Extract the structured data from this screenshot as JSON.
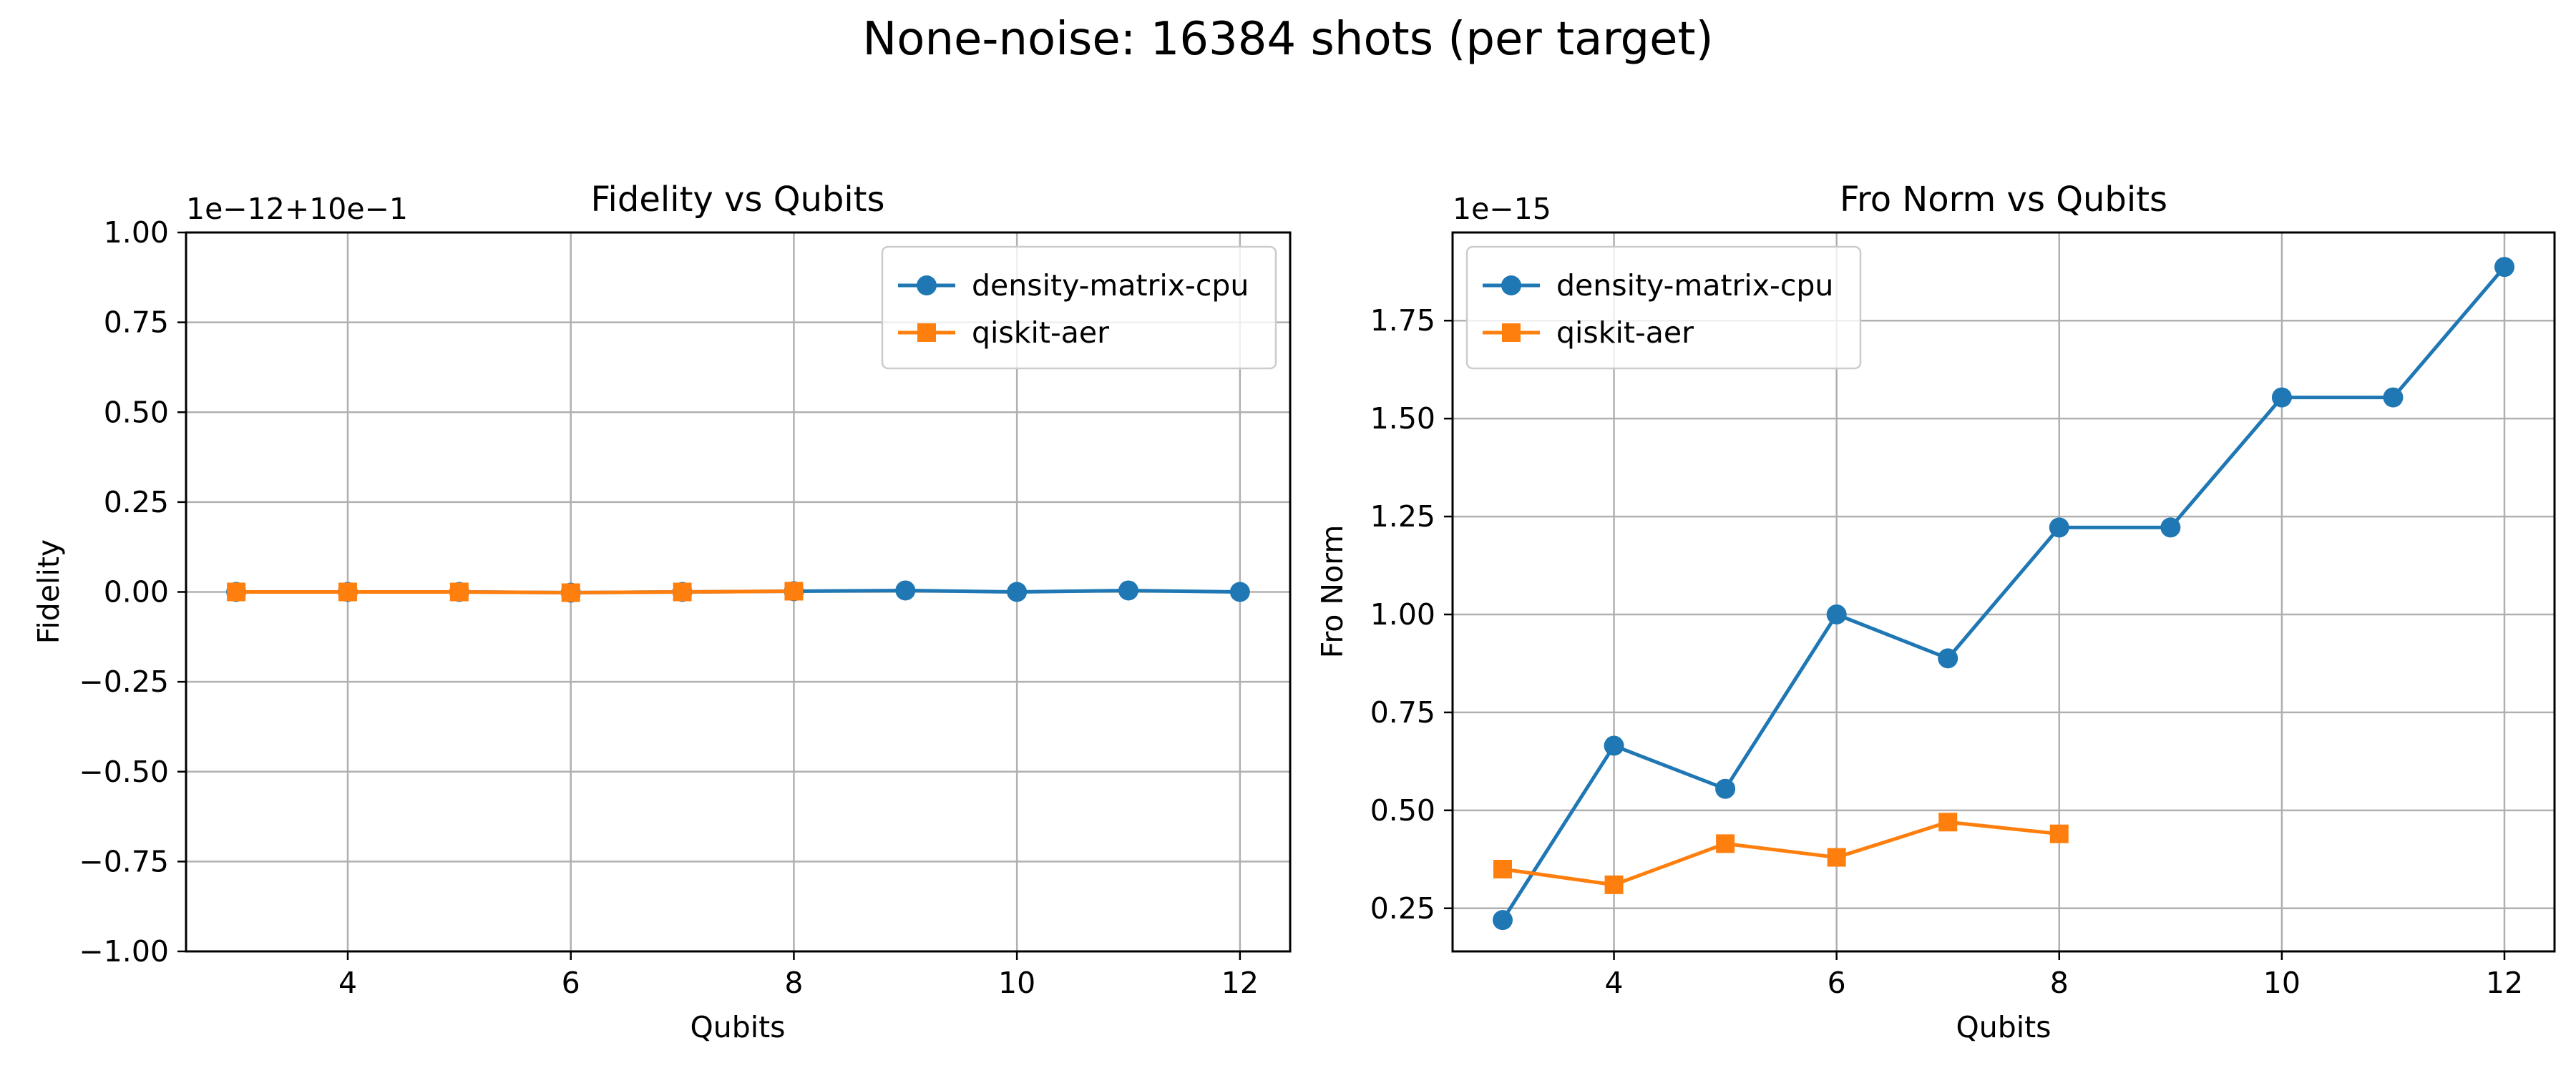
{
  "figure": {
    "suptitle": "None-noise: 16384 shots (per target)"
  },
  "colors": {
    "density-matrix-cpu": "#1f77b4",
    "qiskit-aer": "#ff7f0e",
    "grid": "#b0b0b0"
  },
  "chart_data": [
    {
      "type": "line",
      "title": "Fidelity vs Qubits",
      "xlabel": "Qubits",
      "ylabel": "Fidelity",
      "y_offset_text": "1e−12+10e−1",
      "xlim": [
        2.55,
        12.45
      ],
      "ylim": [
        -1.0,
        1.0
      ],
      "xticks": [
        4,
        6,
        8,
        10,
        12
      ],
      "xtick_labels": [
        "4",
        "6",
        "8",
        "10",
        "12"
      ],
      "yticks": [
        -1.0,
        -0.75,
        -0.5,
        -0.25,
        0.0,
        0.25,
        0.5,
        0.75,
        1.0
      ],
      "ytick_labels": [
        "−1.00",
        "−0.75",
        "−0.50",
        "−0.25",
        "0.00",
        "0.25",
        "0.50",
        "0.75",
        "1.00"
      ],
      "grid": true,
      "legend": "top-right",
      "series": [
        {
          "name": "density-matrix-cpu",
          "marker": "circle",
          "x": [
            3,
            4,
            5,
            6,
            7,
            8,
            9,
            10,
            11,
            12
          ],
          "y": [
            0.0,
            0.0,
            0.0,
            -0.002,
            0.0,
            0.002,
            0.004,
            0.0,
            0.004,
            0.0
          ]
        },
        {
          "name": "qiskit-aer",
          "marker": "square",
          "x": [
            3,
            4,
            5,
            6,
            7,
            8
          ],
          "y": [
            0.0,
            0.0,
            0.0,
            -0.002,
            0.0,
            0.002
          ]
        }
      ]
    },
    {
      "type": "line",
      "title": "Fro Norm vs Qubits",
      "xlabel": "Qubits",
      "ylabel": "Fro Norm",
      "y_offset_text": "1e−15",
      "xlim": [
        2.55,
        12.45
      ],
      "ylim": [
        0.14,
        1.975
      ],
      "xticks": [
        4,
        6,
        8,
        10,
        12
      ],
      "xtick_labels": [
        "4",
        "6",
        "8",
        "10",
        "12"
      ],
      "yticks": [
        0.25,
        0.5,
        0.75,
        1.0,
        1.25,
        1.5,
        1.75
      ],
      "ytick_labels": [
        "0.25",
        "0.50",
        "0.75",
        "1.00",
        "1.25",
        "1.50",
        "1.75"
      ],
      "grid": true,
      "legend": "top-left",
      "series": [
        {
          "name": "density-matrix-cpu",
          "marker": "circle",
          "x": [
            3,
            4,
            5,
            6,
            7,
            8,
            9,
            10,
            11,
            12
          ],
          "y": [
            0.22,
            0.665,
            0.555,
            1.0,
            0.888,
            1.222,
            1.222,
            1.554,
            1.554,
            1.887
          ]
        },
        {
          "name": "qiskit-aer",
          "marker": "square",
          "x": [
            3,
            4,
            5,
            6,
            7,
            8
          ],
          "y": [
            0.35,
            0.31,
            0.415,
            0.38,
            0.47,
            0.44
          ]
        }
      ]
    }
  ]
}
